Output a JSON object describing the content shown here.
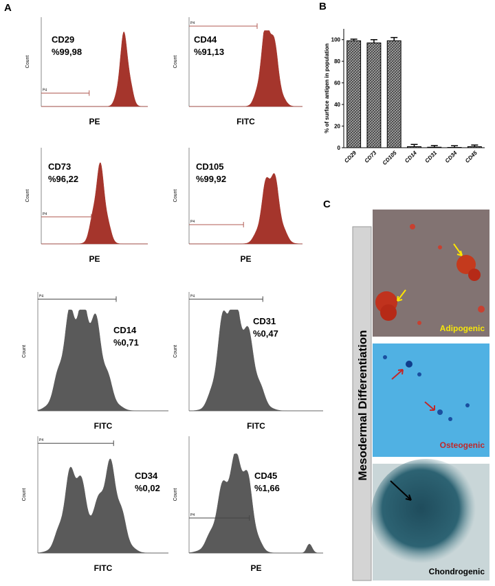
{
  "panel_a": {
    "label": "A",
    "y_axis_label": "Count",
    "plots": [
      {
        "marker": "CD29",
        "percent": "%99,98",
        "x_axis_label": "PE",
        "gate": "P4"
      },
      {
        "marker": "CD44",
        "percent": "%91,13",
        "x_axis_label": "FITC",
        "gate": "P4"
      },
      {
        "marker": "CD73",
        "percent": "%96,22",
        "x_axis_label": "PE",
        "gate": "P4"
      },
      {
        "marker": "CD105",
        "percent": "%99,92",
        "x_axis_label": "PE",
        "gate": "P4"
      },
      {
        "marker": "CD14",
        "percent": "%0,71",
        "x_axis_label": "FITC",
        "gate": "P4"
      },
      {
        "marker": "CD31",
        "percent": "%0,47",
        "x_axis_label": "FITC",
        "gate": "P4"
      },
      {
        "marker": "CD34",
        "percent": "%0,02",
        "x_axis_label": "FITC",
        "gate": "P4"
      },
      {
        "marker": "CD45",
        "percent": "%1,66",
        "x_axis_label": "PE",
        "gate": "P4"
      }
    ]
  },
  "panel_b_label": "B",
  "chart_data": {
    "type": "bar",
    "y_axis_label": "% of surface antigen in population",
    "categories": [
      "CD29",
      "CD73",
      "CD105",
      "CD14",
      "CD31",
      "CD34",
      "CD45"
    ],
    "values": [
      99,
      97,
      99,
      1,
      0.5,
      0.3,
      1
    ],
    "errors": [
      1.5,
      3,
      3,
      2,
      1.5,
      1.5,
      1.5
    ],
    "color": "#555555",
    "ylim": [
      0,
      110
    ],
    "yticks": [
      0,
      20,
      40,
      60,
      80,
      100
    ]
  },
  "panel_c": {
    "label": "C",
    "title": "Mesodermal Differentiation",
    "images": [
      {
        "label": "Adipogenic"
      },
      {
        "label": "Osteogenic"
      },
      {
        "label": "Chondrogenic"
      }
    ]
  }
}
